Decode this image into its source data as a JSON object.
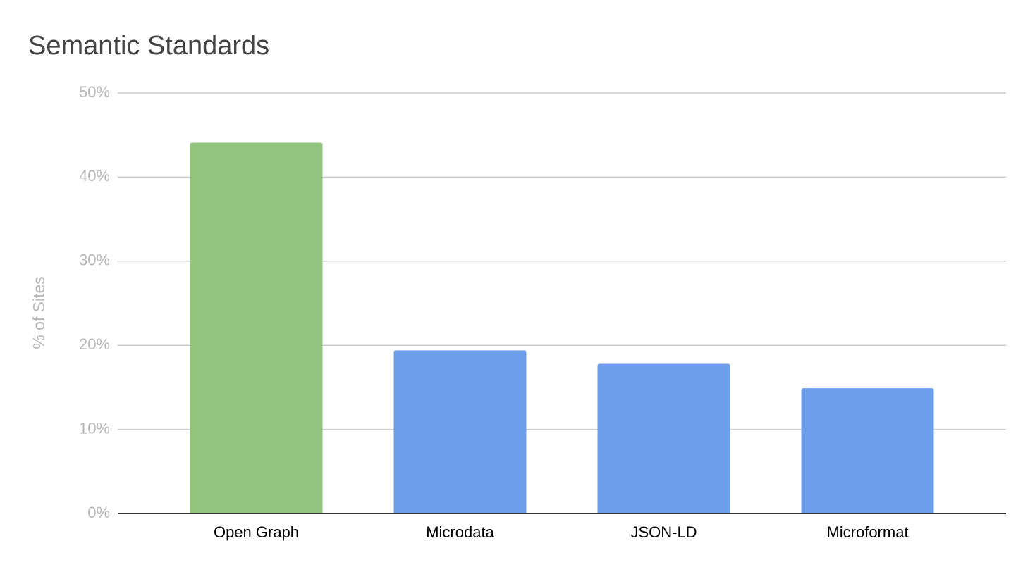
{
  "chart_data": {
    "type": "bar",
    "title": "Semantic Standards",
    "y_label": "% of Sites",
    "categories": [
      "Open Graph",
      "Microdata",
      "JSON-LD",
      "Microformat"
    ],
    "values": [
      44.1,
      19.4,
      17.8,
      14.9
    ],
    "colors": [
      "#93c47d",
      "#6d9eeb",
      "#6d9eeb",
      "#6d9eeb"
    ],
    "ylim": [
      0,
      50
    ],
    "yticks": [
      {
        "value": 0,
        "label": "0%"
      },
      {
        "value": 10,
        "label": "10%"
      },
      {
        "value": 20,
        "label": "20%"
      },
      {
        "value": 30,
        "label": "30%"
      },
      {
        "value": 40,
        "label": "40%"
      },
      {
        "value": 50,
        "label": "50%"
      }
    ],
    "grid": true
  }
}
